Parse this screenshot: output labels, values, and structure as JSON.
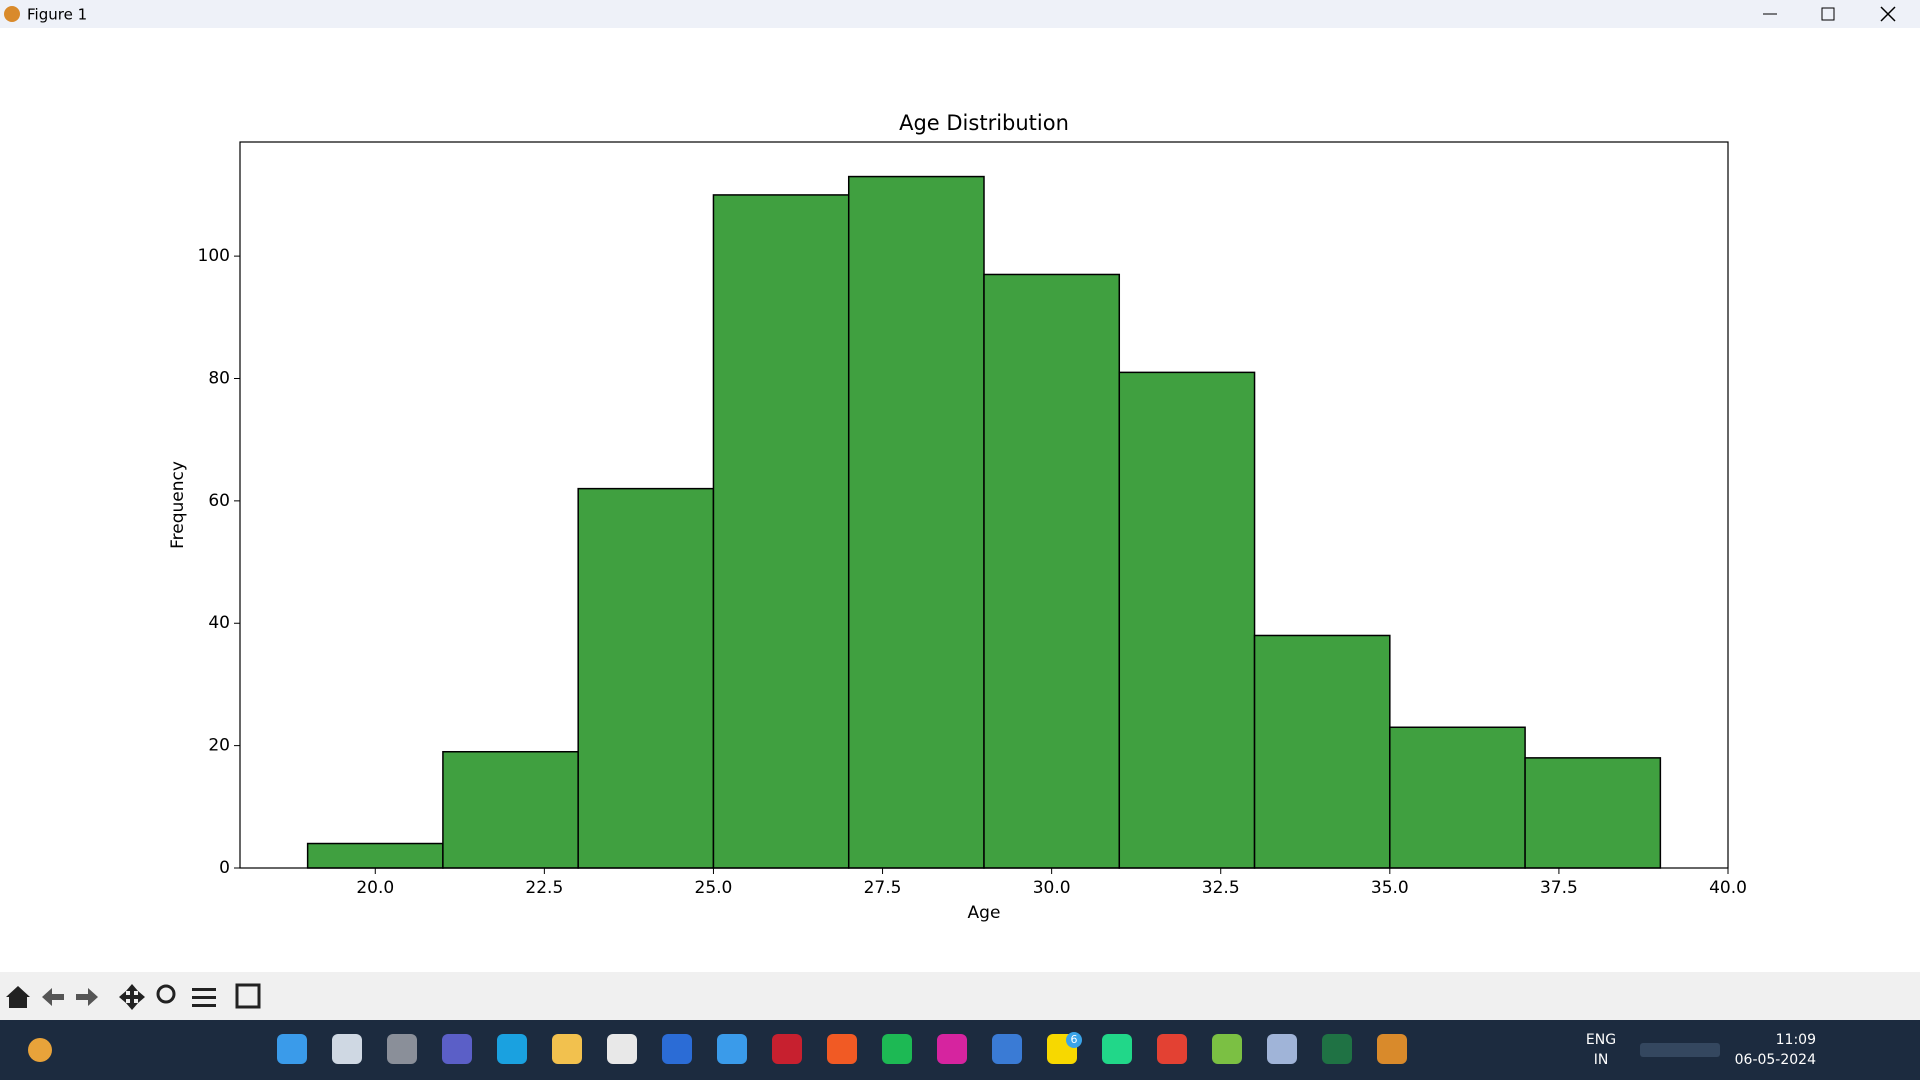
{
  "window": {
    "title": "Figure 1"
  },
  "chart_data": {
    "type": "histogram",
    "title": "Age Distribution",
    "x_label": "Age",
    "y_label": "Frequency",
    "bins": [
      19,
      21,
      23,
      25,
      27,
      29,
      31,
      33,
      35,
      37,
      39
    ],
    "values": [
      4,
      19,
      62,
      110,
      113,
      97,
      81,
      38,
      23,
      18
    ],
    "color": "#40a040",
    "edgecolor": "#000000",
    "xlim": [
      18,
      40
    ],
    "xticks": [
      {
        "value": 20,
        "label": "20.0"
      },
      {
        "value": 22.5,
        "label": "22.5"
      },
      {
        "value": 25,
        "label": "25.0"
      },
      {
        "value": 27.5,
        "label": "27.5"
      },
      {
        "value": 30,
        "label": "30.0"
      },
      {
        "value": 32.5,
        "label": "32.5"
      },
      {
        "value": 35,
        "label": "35.0"
      },
      {
        "value": 37.5,
        "label": "37.5"
      },
      {
        "value": 40,
        "label": "40.0"
      }
    ],
    "ylim": [
      0,
      118.65
    ],
    "yticks": [
      0,
      20,
      40,
      60,
      80,
      100
    ],
    "grid": false
  },
  "taskbar": {
    "badge": "6",
    "language": "ENG",
    "region": "IN",
    "time": "11:09",
    "date": "06-05-2024"
  }
}
